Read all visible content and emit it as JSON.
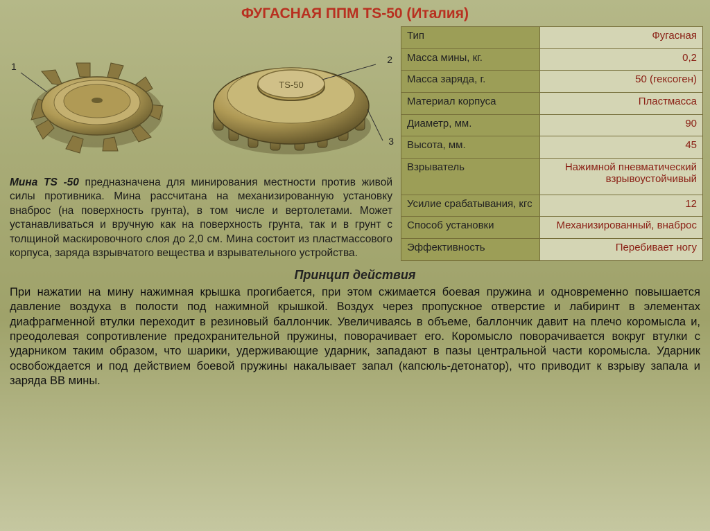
{
  "title": "ФУГАСНАЯ ППМ TS-50 (Италия)",
  "colors": {
    "title_color": "#b83020",
    "table_label_bg": "#9c9e57",
    "table_value_bg": "#d4d5b4",
    "table_value_color": "#8a2015",
    "table_border": "#766f3a",
    "mine_body": "#b09a55",
    "mine_shadow": "#6b5e2f",
    "mine_highlight": "#d4c488"
  },
  "callouts": {
    "n1": "1",
    "n2": "2",
    "n3": "3"
  },
  "mine_label": "TS-50",
  "specs": {
    "rows": [
      {
        "label": "Тип",
        "value": "Фугасная"
      },
      {
        "label": "Масса мины, кг.",
        "value": "0,2"
      },
      {
        "label": "Масса заряда, г.",
        "value": "50 (гексоген)"
      },
      {
        "label": "Материал корпуса",
        "value": "Пластмасса"
      },
      {
        "label": "Диаметр, мм.",
        "value": "90"
      },
      {
        "label": "Высота, мм.",
        "value": "45"
      },
      {
        "label": "Взрыватель",
        "value": "Нажимной пневматический взрывоустойчивый"
      },
      {
        "label": "Усилие срабатывания, кгс",
        "value": "12"
      },
      {
        "label": "Способ установки",
        "value": "Механизированный, внаброс"
      },
      {
        "label": "Эффективность",
        "value": "Перебивает ногу"
      }
    ]
  },
  "intro": {
    "lead": "Мина TS -50",
    "text": " предназначена для минирования местности против живой силы противника. Мина рассчитана на механизированную установку внаброс (на поверхность грунта), в том числе и вертолетами. Может устанавливаться и вручную как на поверхность грунта, так и в грунт с толщиной маскировочного слоя до 2,0 см. Мина состоит из пластмассового корпуса, заряда взрывчатого вещества и взрывательного устройства."
  },
  "principle": {
    "heading": "Принцип действия",
    "text": "При нажатии на мину нажимная крышка прогибается, при этом сжимается боевая пружина и одновременно повышается давление воздуха в полости под нажимной крышкой. Воздух через пропускное отверстие и лабиринт в элементах диафрагменной втулки переходит в резиновый баллончик. Увеличиваясь в объеме, баллончик давит на плечо коромысла и, преодолевая сопротивление предохранительной пружины, поворачивает его. Коромысло поворачивается вокруг втулки с ударником таким образом, что шарики, удерживающие ударник, западают в пазы центральной части коромысла. Ударник освобождается и под действием боевой пружины накалывает запал (капсюль-детонатор), что приводит к взрыву запала и заряда ВВ мины."
  }
}
